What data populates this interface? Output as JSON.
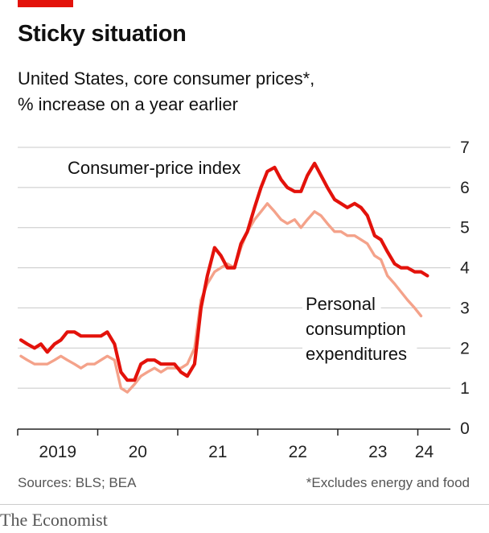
{
  "header": {
    "title": "Sticky situation",
    "subtitle_line1": "United States, core consumer prices*,",
    "subtitle_line2": "% increase on a year earlier"
  },
  "footer": {
    "source": "Sources: BLS; BEA",
    "note": "*Excludes energy and food",
    "brand": "The Economist"
  },
  "colors": {
    "accent": "#e3120b",
    "cpi": "#e3120b",
    "pce": "#f4a28a",
    "grid": "#c8c8c8",
    "axis": "#222222"
  },
  "chart_data": {
    "type": "line",
    "ylim": [
      0,
      7
    ],
    "yticks": [
      0,
      1,
      2,
      3,
      4,
      5,
      6,
      7
    ],
    "y_axis_side": "right",
    "grid": true,
    "xlim": [
      2019.0,
      2025.3
    ],
    "x_tick_labels": [
      {
        "label": "2019",
        "at": 2019.5
      },
      {
        "label": "20",
        "at": 2020.5
      },
      {
        "label": "21",
        "at": 2021.5
      },
      {
        "label": "22",
        "at": 2022.5
      },
      {
        "label": "23",
        "at": 2023.5
      },
      {
        "label": "24",
        "at": 2024.08
      }
    ],
    "x_tick_marks": [
      2019.0,
      2020.0,
      2021.0,
      2022.0,
      2023.0,
      2024.0,
      2025.0
    ],
    "series": [
      {
        "name": "Consumer-price index",
        "color": "#e3120b",
        "x": [
          2019.04,
          2019.12,
          2019.21,
          2019.29,
          2019.37,
          2019.46,
          2019.54,
          2019.62,
          2019.71,
          2019.79,
          2019.87,
          2019.96,
          2020.04,
          2020.12,
          2020.21,
          2020.29,
          2020.37,
          2020.46,
          2020.54,
          2020.62,
          2020.71,
          2020.79,
          2020.87,
          2020.96,
          2021.04,
          2021.12,
          2021.21,
          2021.29,
          2021.37,
          2021.46,
          2021.54,
          2021.62,
          2021.71,
          2021.79,
          2021.87,
          2021.96,
          2022.04,
          2022.12,
          2022.21,
          2022.29,
          2022.37,
          2022.46,
          2022.54,
          2022.62,
          2022.71,
          2022.79,
          2022.87,
          2022.96,
          2023.04,
          2023.12,
          2023.21,
          2023.29,
          2023.37,
          2023.46,
          2023.54,
          2023.62,
          2023.71,
          2023.79,
          2023.87,
          2023.96,
          2024.04,
          2024.12
        ],
        "values": [
          2.2,
          2.1,
          2.0,
          2.1,
          1.9,
          2.1,
          2.2,
          2.4,
          2.4,
          2.3,
          2.3,
          2.3,
          2.3,
          2.4,
          2.1,
          1.4,
          1.2,
          1.2,
          1.6,
          1.7,
          1.7,
          1.6,
          1.6,
          1.6,
          1.4,
          1.3,
          1.6,
          3.0,
          3.8,
          4.5,
          4.3,
          4.0,
          4.0,
          4.6,
          4.9,
          5.5,
          6.0,
          6.4,
          6.5,
          6.2,
          6.0,
          5.9,
          5.9,
          6.3,
          6.6,
          6.3,
          6.0,
          5.7,
          5.6,
          5.5,
          5.6,
          5.5,
          5.3,
          4.8,
          4.7,
          4.4,
          4.1,
          4.0,
          4.0,
          3.9,
          3.9,
          3.8
        ]
      },
      {
        "name": "Personal consumption expenditures",
        "color": "#f4a28a",
        "x": [
          2019.04,
          2019.12,
          2019.21,
          2019.29,
          2019.37,
          2019.46,
          2019.54,
          2019.62,
          2019.71,
          2019.79,
          2019.87,
          2019.96,
          2020.04,
          2020.12,
          2020.21,
          2020.29,
          2020.37,
          2020.46,
          2020.54,
          2020.62,
          2020.71,
          2020.79,
          2020.87,
          2020.96,
          2021.04,
          2021.12,
          2021.21,
          2021.29,
          2021.37,
          2021.46,
          2021.54,
          2021.62,
          2021.71,
          2021.79,
          2021.87,
          2021.96,
          2022.04,
          2022.12,
          2022.21,
          2022.29,
          2022.37,
          2022.46,
          2022.54,
          2022.62,
          2022.71,
          2022.79,
          2022.87,
          2022.96,
          2023.04,
          2023.12,
          2023.21,
          2023.29,
          2023.37,
          2023.46,
          2023.54,
          2023.62,
          2023.71,
          2023.79,
          2023.87,
          2023.96,
          2024.04
        ],
        "values": [
          1.8,
          1.7,
          1.6,
          1.6,
          1.6,
          1.7,
          1.8,
          1.7,
          1.6,
          1.5,
          1.6,
          1.6,
          1.7,
          1.8,
          1.7,
          1.0,
          0.9,
          1.1,
          1.3,
          1.4,
          1.5,
          1.4,
          1.5,
          1.5,
          1.5,
          1.6,
          2.0,
          3.2,
          3.6,
          3.9,
          4.0,
          4.1,
          4.0,
          4.5,
          4.9,
          5.2,
          5.4,
          5.6,
          5.4,
          5.2,
          5.1,
          5.2,
          5.0,
          5.2,
          5.4,
          5.3,
          5.1,
          4.9,
          4.9,
          4.8,
          4.8,
          4.7,
          4.6,
          4.3,
          4.2,
          3.8,
          3.6,
          3.4,
          3.2,
          3.0,
          2.8
        ]
      }
    ],
    "annotations": [
      {
        "lines": [
          "Consumer-price index"
        ],
        "series": "Consumer-price index"
      },
      {
        "lines": [
          "Personal",
          "consumption",
          "expenditures"
        ],
        "series": "Personal consumption expenditures"
      }
    ]
  }
}
